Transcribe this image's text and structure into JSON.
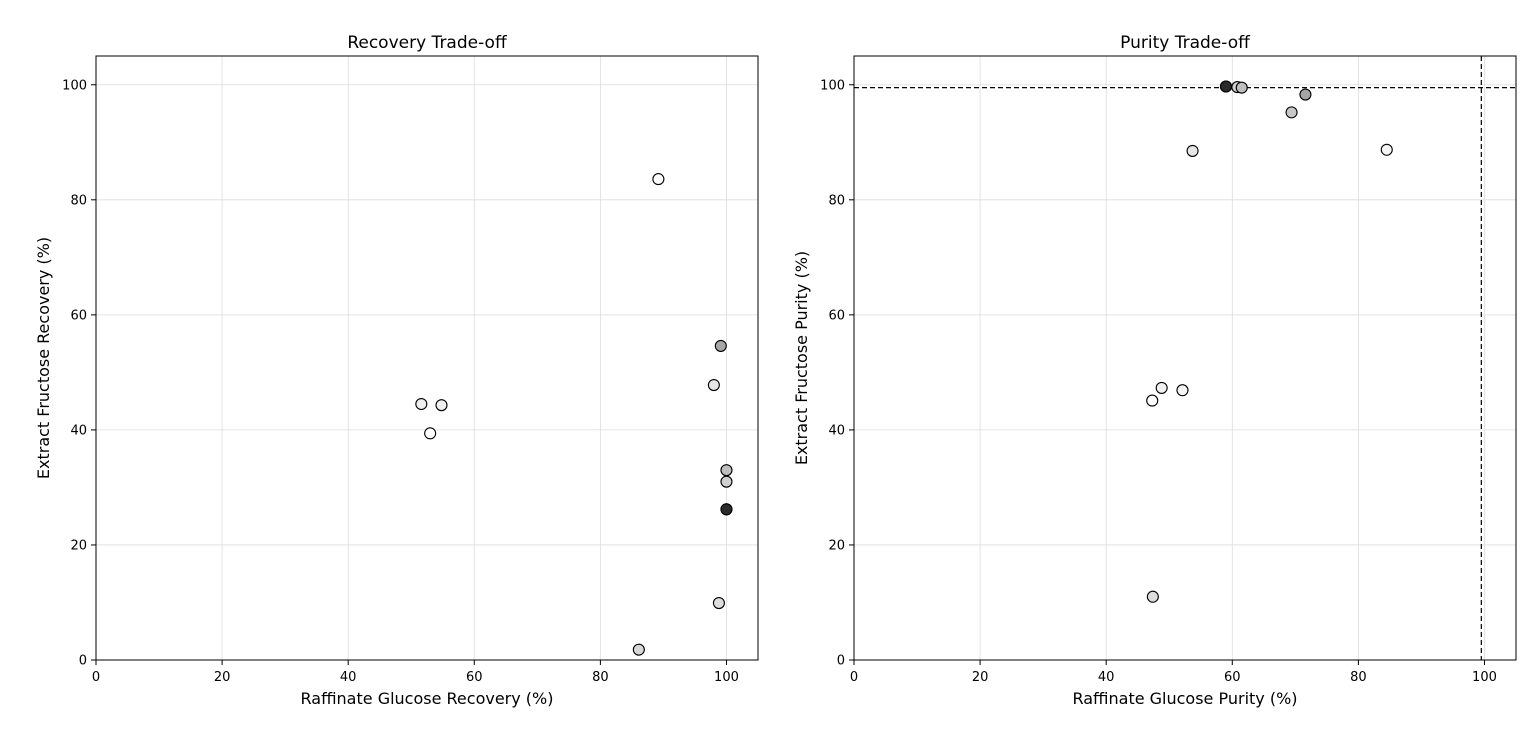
{
  "chart_data": [
    {
      "type": "scatter",
      "title": "Recovery Trade-off",
      "xlabel": "Raffinate Glucose Recovery (%)",
      "ylabel": "Extract Fructose Recovery (%)",
      "xlim": [
        0,
        105
      ],
      "ylim": [
        0,
        105
      ],
      "xticks": [
        0,
        20,
        40,
        60,
        80,
        100
      ],
      "yticks": [
        0,
        20,
        40,
        60,
        80,
        100
      ],
      "grid": true,
      "reference_lines": [],
      "points": [
        {
          "x": 89.2,
          "y": 83.6,
          "color": "#ffffff"
        },
        {
          "x": 51.6,
          "y": 44.5,
          "color": "#f0f0f0"
        },
        {
          "x": 54.8,
          "y": 44.3,
          "color": "#f0f0f0"
        },
        {
          "x": 53.0,
          "y": 39.4,
          "color": "#ffffff"
        },
        {
          "x": 99.1,
          "y": 54.6,
          "color": "#a6a6a6"
        },
        {
          "x": 98.0,
          "y": 47.8,
          "color": "#e6e6e6"
        },
        {
          "x": 100.0,
          "y": 33.0,
          "color": "#bfbfbf"
        },
        {
          "x": 100.0,
          "y": 31.0,
          "color": "#d0d0d0"
        },
        {
          "x": 100.0,
          "y": 26.2,
          "color": "#1a1a1a"
        },
        {
          "x": 100.0,
          "y": 26.2,
          "color": "#2b2b2b"
        },
        {
          "x": 98.8,
          "y": 9.9,
          "color": "#dddddd"
        },
        {
          "x": 86.1,
          "y": 1.8,
          "color": "#d8d8d8"
        }
      ]
    },
    {
      "type": "scatter",
      "title": "Purity Trade-off",
      "xlabel": "Raffinate Glucose Purity (%)",
      "ylabel": "Extract Fructose Purity (%)",
      "xlim": [
        0,
        105
      ],
      "ylim": [
        0,
        105
      ],
      "xticks": [
        0,
        20,
        40,
        60,
        80,
        100
      ],
      "yticks": [
        0,
        20,
        40,
        60,
        80,
        100
      ],
      "grid": true,
      "reference_lines": [
        {
          "orientation": "horizontal",
          "value": 99.5,
          "style": "dashed"
        },
        {
          "orientation": "vertical",
          "value": 99.5,
          "style": "dashed"
        }
      ],
      "points": [
        {
          "x": 59.0,
          "y": 99.7,
          "color": "#1a1a1a"
        },
        {
          "x": 59.0,
          "y": 99.7,
          "color": "#2b2b2b"
        },
        {
          "x": 60.8,
          "y": 99.6,
          "color": "#d0d0d0"
        },
        {
          "x": 61.5,
          "y": 99.5,
          "color": "#bfbfbf"
        },
        {
          "x": 71.6,
          "y": 98.3,
          "color": "#a6a6a6"
        },
        {
          "x": 69.4,
          "y": 95.2,
          "color": "#c8c8c8"
        },
        {
          "x": 53.7,
          "y": 88.5,
          "color": "#e6e6e6"
        },
        {
          "x": 84.5,
          "y": 88.7,
          "color": "#f5f5f5"
        },
        {
          "x": 48.8,
          "y": 47.3,
          "color": "#f0f0f0"
        },
        {
          "x": 52.1,
          "y": 46.9,
          "color": "#f5f5f5"
        },
        {
          "x": 47.3,
          "y": 45.1,
          "color": "#ffffff"
        },
        {
          "x": 47.4,
          "y": 11.0,
          "color": "#dddddd"
        }
      ]
    }
  ]
}
